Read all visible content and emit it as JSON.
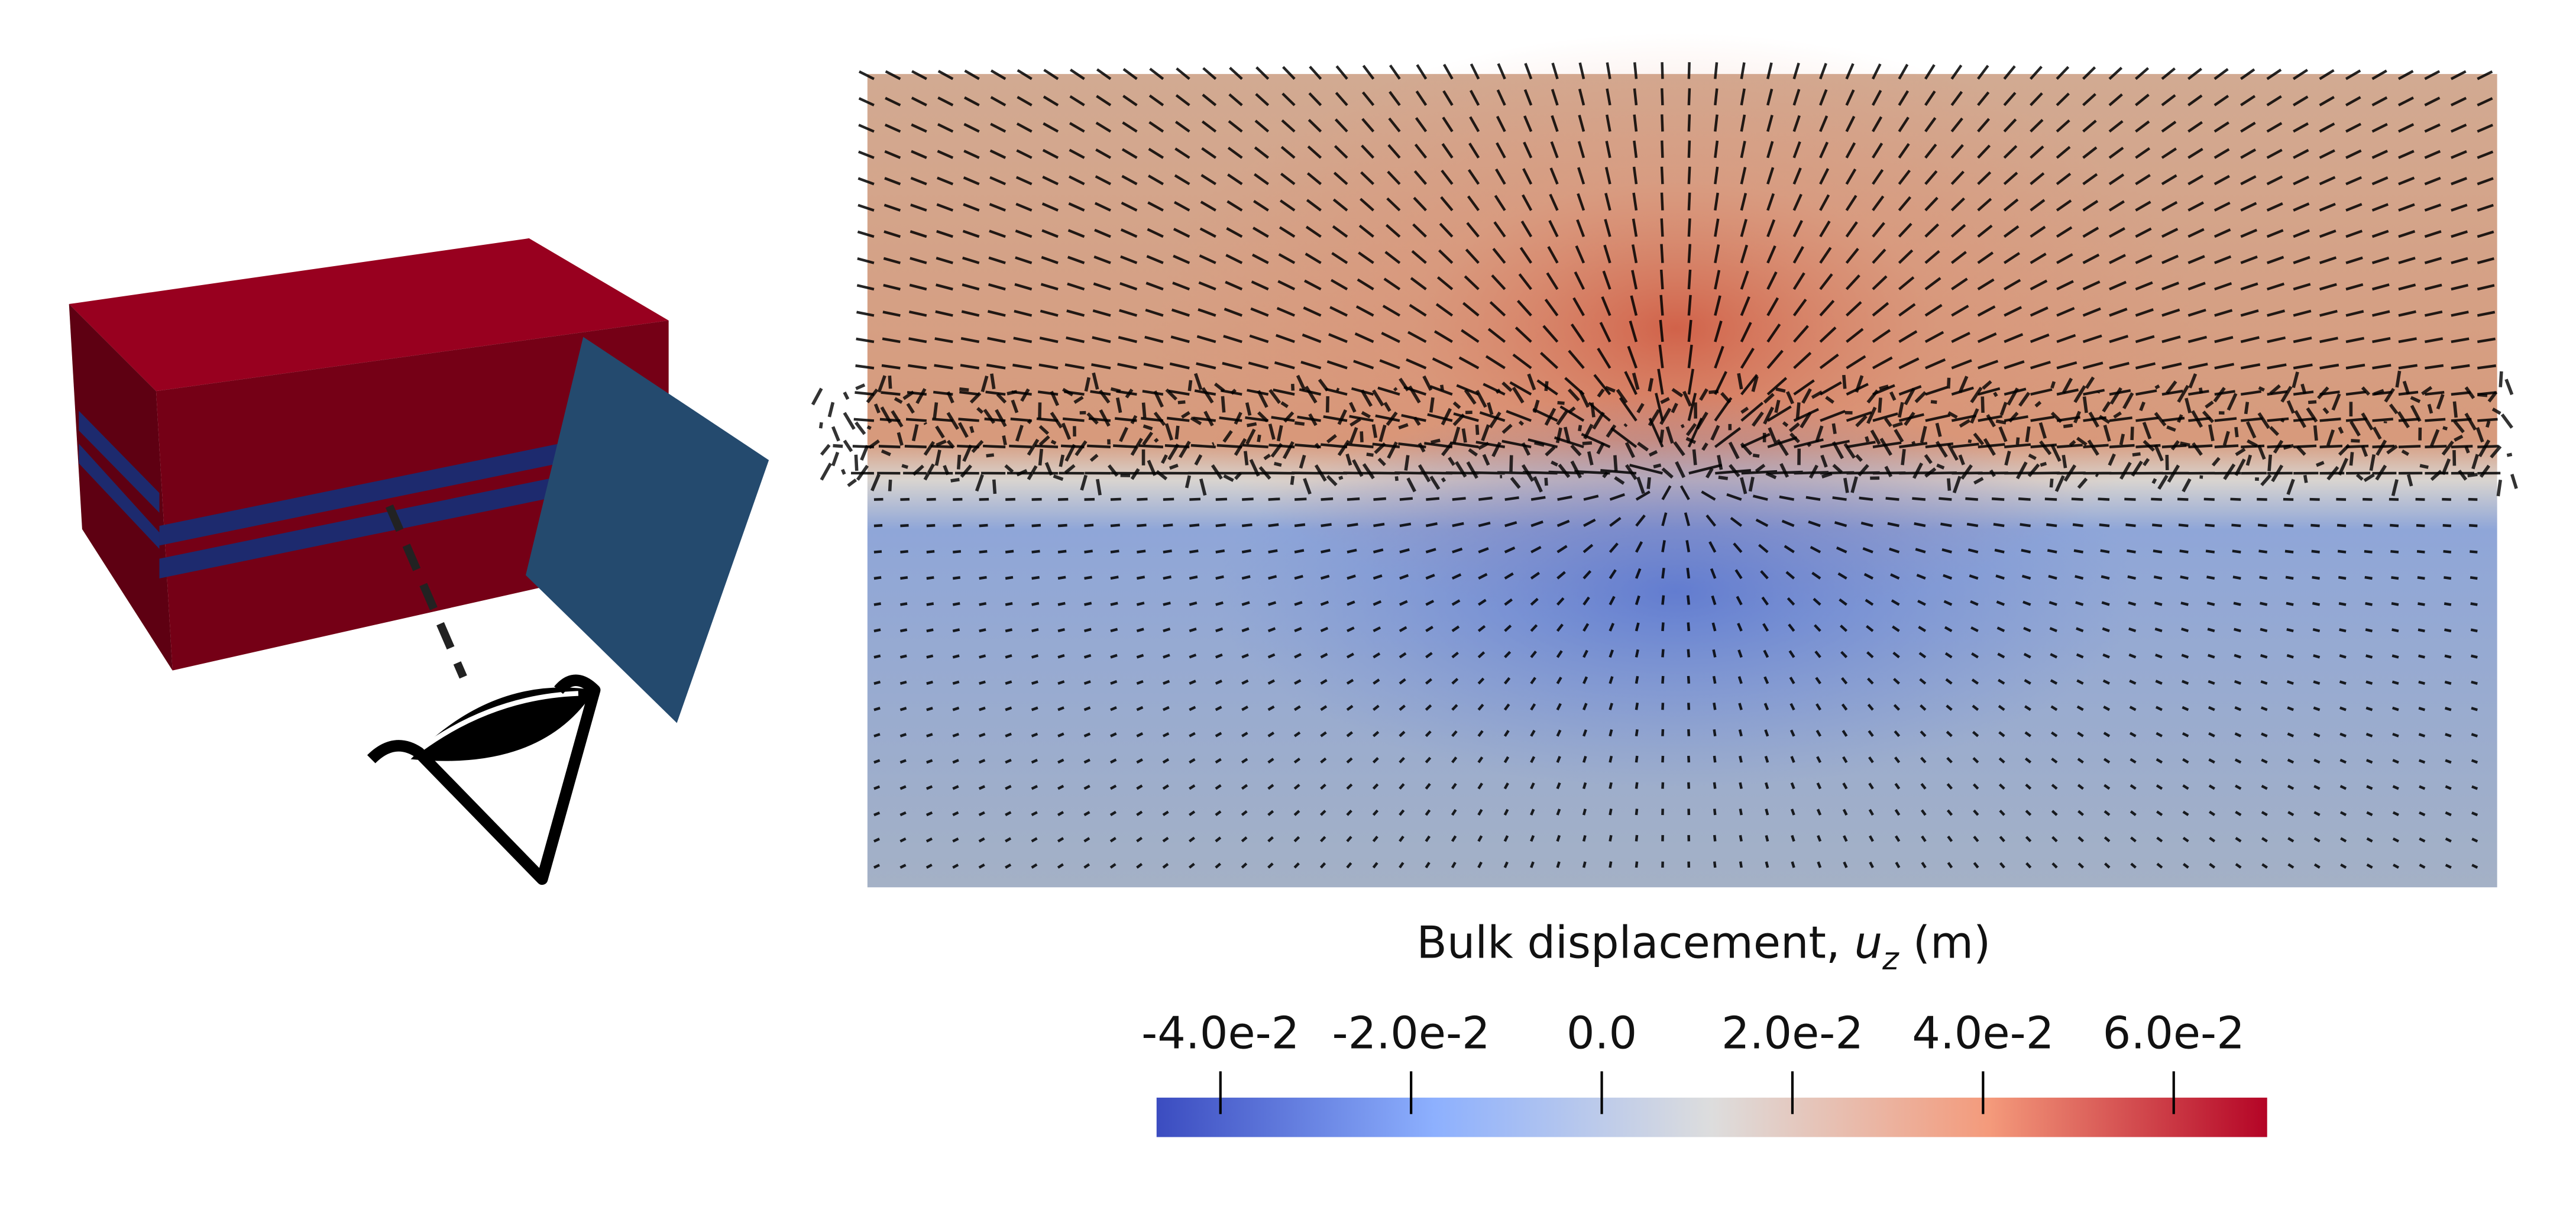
{
  "chart_data": {
    "type": "colorbar",
    "title_runs": [
      "Bulk displacement, ",
      "u",
      "z",
      " (m)"
    ],
    "zlim": [
      -0.0467,
      0.0698
    ],
    "zticks": [
      {
        "value": -0.04,
        "label": "-4.0e-2"
      },
      {
        "value": -0.02,
        "label": "-2.0e-2"
      },
      {
        "value": 0,
        "label": "0.0"
      },
      {
        "value": 0.02,
        "label": "2.0e-2"
      },
      {
        "value": 0.04,
        "label": "4.0e-2"
      },
      {
        "value": 0.06,
        "label": "6.0e-2"
      }
    ],
    "colormap": [
      "#3b4cc0",
      "#8db0fe",
      "#dddddd",
      "#f49a7b",
      "#b40426"
    ]
  }
}
